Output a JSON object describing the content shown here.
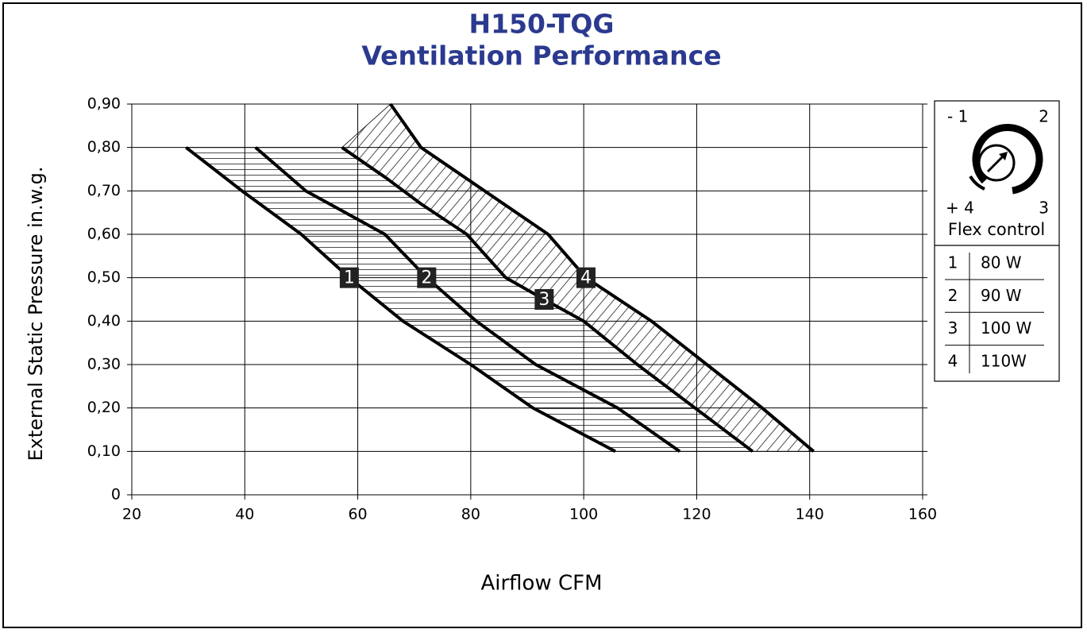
{
  "chart_data": {
    "type": "line",
    "title": "H150-TQG",
    "subtitle": "Ventilation Performance",
    "x_label": "Airflow CFM",
    "y_label": "External Static Pressure in.w.g.",
    "xlim": [
      20,
      160
    ],
    "xticks": [
      20,
      40,
      60,
      80,
      100,
      120,
      140,
      160
    ],
    "ylim": [
      0,
      0.9
    ],
    "yticks": [
      0,
      {
        "value": 0.1,
        "label": "0,10"
      },
      {
        "value": 0.2,
        "label": "0,20"
      },
      {
        "value": 0.3,
        "label": "0,30"
      },
      {
        "value": 0.4,
        "label": "0,40"
      },
      {
        "value": 0.5,
        "label": "0,50"
      },
      {
        "value": 0.6,
        "label": "0,60"
      },
      {
        "value": 0.7,
        "label": "0,70"
      },
      {
        "value": 0.8,
        "label": "0,80"
      },
      {
        "value": 0.9,
        "label": "0,90"
      }
    ],
    "grid": true,
    "series": [
      {
        "name": "1",
        "label": "80 W",
        "color": "#000000",
        "x": [
          29.6,
          39.5,
          50,
          58.5,
          68,
          80,
          91,
          105.6
        ],
        "values": [
          0.8,
          0.7,
          0.6,
          0.5,
          0.4,
          0.3,
          0.2,
          0.1
        ]
      },
      {
        "name": "2",
        "label": "90 W",
        "color": "#000000",
        "x": [
          41.9,
          50.8,
          64.8,
          72.2,
          81,
          91.5,
          106,
          117
        ],
        "values": [
          0.8,
          0.7,
          0.6,
          0.5,
          0.4,
          0.3,
          0.2,
          0.1
        ]
      },
      {
        "name": "3",
        "label": "100 W",
        "color": "#000000",
        "x": [
          57.2,
          65,
          71.2,
          79.3,
          86.2,
          93,
          100,
          109.5,
          119.7,
          129.9
        ],
        "values": [
          0.8,
          0.73,
          0.67,
          0.6,
          0.5,
          0.45,
          0.4,
          0.3,
          0.2,
          0.1
        ]
      },
      {
        "name": "4",
        "label": "110W",
        "color": "#000000",
        "x": [
          65.8,
          71.2,
          93.7,
          100.4,
          112,
          121.8,
          131.6,
          140.7
        ],
        "values": [
          0.9,
          0.8,
          0.6,
          0.5,
          0.4,
          0.3,
          0.2,
          0.1
        ]
      }
    ],
    "flex_control": {
      "title": "Flex control",
      "positions": [
        "- 1",
        "2",
        "+ 4",
        "3"
      ]
    }
  }
}
